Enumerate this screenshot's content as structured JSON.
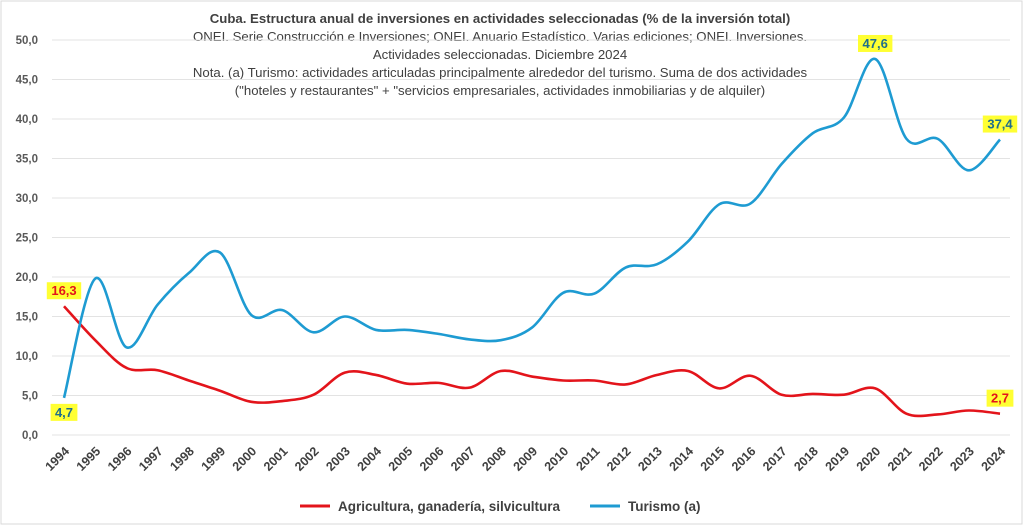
{
  "chart_data": {
    "type": "line",
    "title": "Cuba. Estructura anual de inversiones en actividades seleccionadas (% de la inversión total)",
    "subtitle_lines": [
      "ONEI. Serie Construcción e Inversiones; ONEI. Anuario Estadístico. Varias ediciones; ONEI. Inversiones.",
      "Actividades seleccionadas. Diciembre 2024",
      "Nota. (a) Turismo: actividades articuladas principalmente alrededor del turismo. Suma de dos actividades",
      "(\"hoteles y restaurantes\" + \"servicios empresariales, actividades inmobiliarias y de alquiler)"
    ],
    "xlabel": "",
    "ylabel": "",
    "ylim": [
      0,
      50
    ],
    "yticks": [
      "0,0",
      "5,0",
      "10,0",
      "15,0",
      "20,0",
      "25,0",
      "30,0",
      "35,0",
      "40,0",
      "45,0",
      "50,0"
    ],
    "grid": true,
    "legend_position": "bottom",
    "categories": [
      "1994",
      "1995",
      "1996",
      "1997",
      "1998",
      "1999",
      "2000",
      "2001",
      "2002",
      "2003",
      "2004",
      "2005",
      "2006",
      "2007",
      "2008",
      "2009",
      "2010",
      "2011",
      "2012",
      "2013",
      "2014",
      "2015",
      "2016",
      "2017",
      "2018",
      "2019",
      "2020",
      "2021",
      "2022",
      "2023",
      "2024"
    ],
    "series": [
      {
        "name": "Agricultura, ganadería, silvicultura",
        "color": "#e3141b",
        "label_color": "#e3141b",
        "values": [
          16.3,
          12.0,
          8.5,
          8.2,
          6.9,
          5.6,
          4.2,
          4.3,
          5.1,
          7.9,
          7.6,
          6.5,
          6.6,
          6.0,
          8.1,
          7.4,
          6.9,
          6.9,
          6.4,
          7.6,
          8.1,
          5.9,
          7.5,
          5.1,
          5.2,
          5.1,
          5.9,
          2.7,
          2.6,
          3.1,
          2.7
        ]
      },
      {
        "name": "Turismo (a)",
        "color": "#1e9bd2",
        "label_color": "#1f6e8c",
        "values": [
          4.7,
          19.8,
          11.1,
          16.5,
          20.5,
          23.1,
          15.2,
          15.8,
          13.0,
          15.0,
          13.3,
          13.3,
          12.8,
          12.1,
          12.0,
          13.6,
          18.0,
          17.9,
          21.2,
          21.6,
          24.5,
          29.2,
          29.3,
          34.3,
          38.2,
          40.2,
          47.6,
          37.5,
          37.5,
          33.5,
          37.4
        ]
      }
    ],
    "annotations": [
      {
        "series": 0,
        "x": "1994",
        "text": "16,3",
        "pos": "above"
      },
      {
        "series": 0,
        "x": "2024",
        "text": "2,7",
        "pos": "above"
      },
      {
        "series": 1,
        "x": "1994",
        "text": "4,7",
        "pos": "below"
      },
      {
        "series": 1,
        "x": "2020",
        "text": "47,6",
        "pos": "above"
      },
      {
        "series": 1,
        "x": "2024",
        "text": "37,4",
        "pos": "above"
      }
    ],
    "annotation_bg": "#ffff33"
  }
}
